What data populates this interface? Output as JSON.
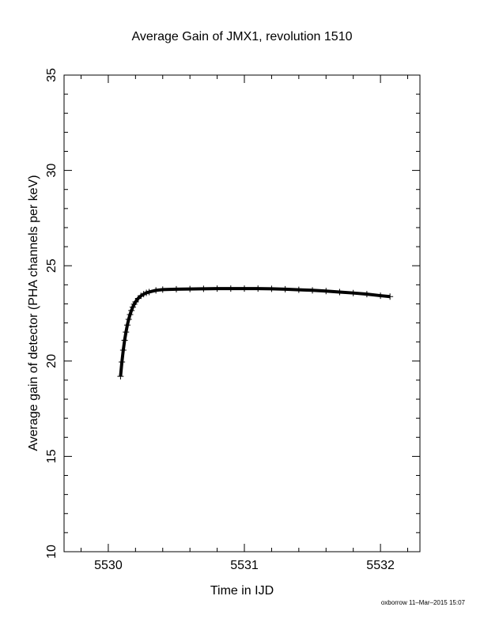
{
  "chart_data": {
    "type": "scatter",
    "title": "Average Gain of JMX1, revolution 1510",
    "x_label": "Time in IJD",
    "y_label": "Average gain of detector (PHA channels per keV)",
    "footer": "oxborrow 11–Mar–2015 15:07",
    "marker": "+",
    "color": "#000000",
    "xlim": [
      5529.675,
      5532.29
    ],
    "ylim": [
      10,
      35
    ],
    "xticks": [
      5530,
      5531,
      5532
    ],
    "yticks": [
      10,
      15,
      20,
      25,
      30,
      35
    ],
    "xminorticks": [
      5529.8,
      5530.2,
      5530.4,
      5530.6,
      5530.8,
      5531.2,
      5531.4,
      5531.6,
      5531.8,
      5532.2
    ],
    "yminorticks": [
      11,
      12,
      13,
      14,
      16,
      17,
      18,
      19,
      21,
      22,
      23,
      24,
      26,
      27,
      28,
      29,
      31,
      32,
      33,
      34
    ],
    "x": [
      5530.09,
      5530.1,
      5530.11,
      5530.12,
      5530.13,
      5530.14,
      5530.15,
      5530.16,
      5530.17,
      5530.18,
      5530.19,
      5530.2,
      5530.22,
      5530.24,
      5530.26,
      5530.28,
      5530.3,
      5530.35,
      5530.4,
      5530.5,
      5530.6,
      5530.7,
      5530.8,
      5530.9,
      5531.0,
      5531.1,
      5531.2,
      5531.3,
      5531.4,
      5531.5,
      5531.6,
      5531.7,
      5531.8,
      5531.9,
      5532.0,
      5532.07
    ],
    "y": [
      19.2,
      19.95,
      20.57,
      21.09,
      21.52,
      21.89,
      22.19,
      22.44,
      22.65,
      22.83,
      22.98,
      23.1,
      23.29,
      23.42,
      23.51,
      23.58,
      23.62,
      23.71,
      23.75,
      23.77,
      23.78,
      23.79,
      23.8,
      23.8,
      23.8,
      23.8,
      23.79,
      23.77,
      23.74,
      23.71,
      23.67,
      23.62,
      23.57,
      23.51,
      23.43,
      23.38
    ]
  }
}
